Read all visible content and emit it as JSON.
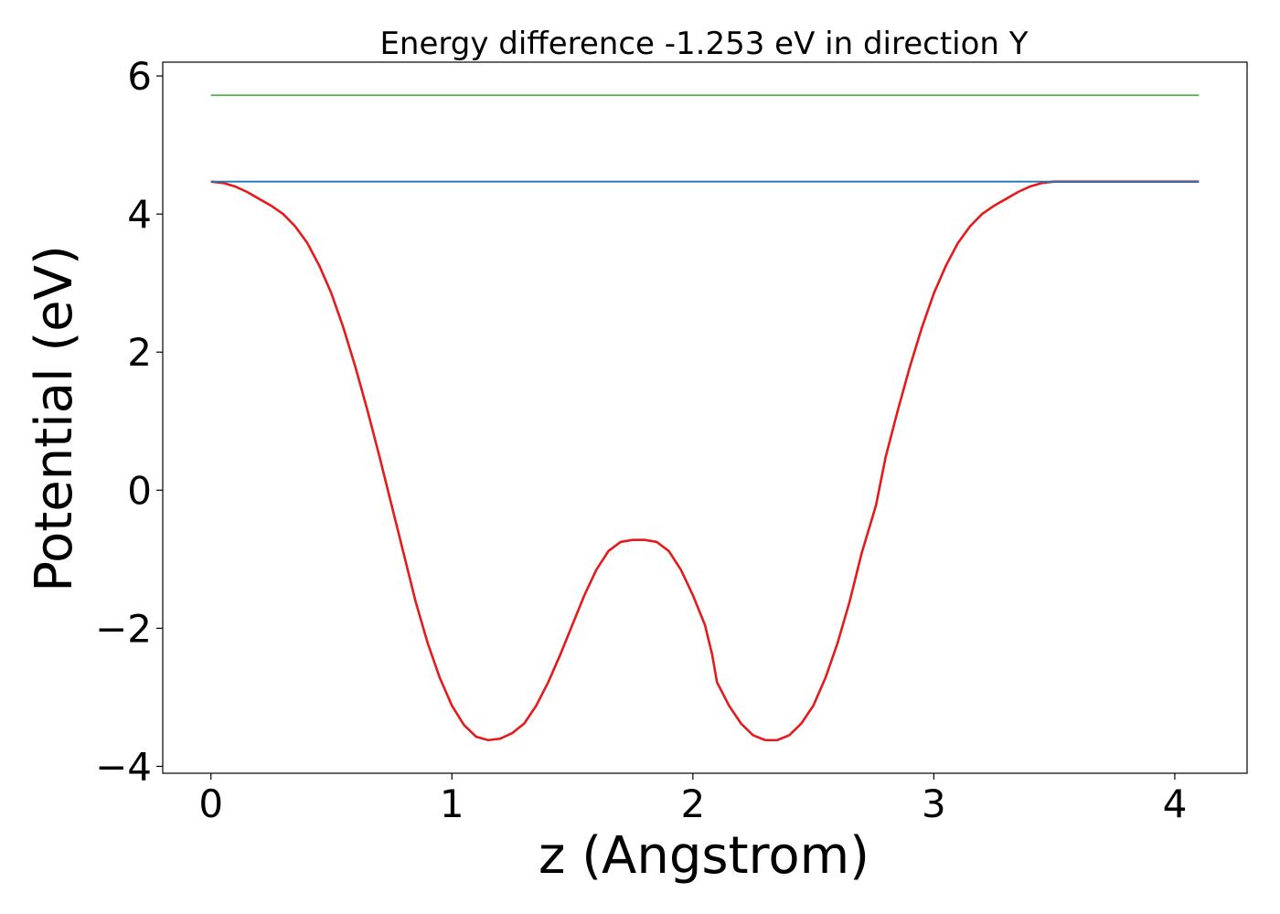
{
  "chart_data": {
    "type": "line",
    "title": "Energy difference -1.253 eV in direction Y",
    "xlabel": "z (Angstrom)",
    "ylabel": "Potential (eV)",
    "xlim": [
      -0.2,
      4.3
    ],
    "ylim": [
      -4.1,
      6.2
    ],
    "xticks": [
      0,
      1,
      2,
      3,
      4
    ],
    "xtick_labels": [
      "0",
      "1",
      "2",
      "3",
      "4"
    ],
    "yticks": [
      -4,
      -2,
      0,
      2,
      4,
      6
    ],
    "ytick_labels": [
      "−4",
      "−2",
      "0",
      "2",
      "4",
      "6"
    ],
    "grid": false,
    "series": [
      {
        "color": "#e41a1c",
        "kind": "curve",
        "x": [
          0.0,
          0.05,
          0.1,
          0.15,
          0.2,
          0.25,
          0.3,
          0.35,
          0.4,
          0.45,
          0.5,
          0.55,
          0.6,
          0.65,
          0.7,
          0.75,
          0.8,
          0.85,
          0.9,
          0.95,
          1.0,
          1.05,
          1.1,
          1.15,
          1.2,
          1.25,
          1.3,
          1.35,
          1.4,
          1.45,
          1.5,
          1.55,
          1.6,
          1.65,
          1.7,
          1.75,
          1.8,
          1.85,
          1.9,
          1.95,
          2.0,
          2.05,
          2.08,
          2.1,
          2.15,
          2.2,
          2.25,
          2.3,
          2.35,
          2.4,
          2.45,
          2.5,
          2.55,
          2.6,
          2.65,
          2.7,
          2.76,
          2.8,
          2.85,
          2.9,
          2.95,
          3.0,
          3.05,
          3.1,
          3.15,
          3.2,
          3.25,
          3.3,
          3.35,
          3.4,
          3.45,
          3.5,
          3.55,
          3.6,
          3.65,
          3.7,
          3.75,
          3.8,
          3.85,
          3.9,
          3.95,
          4.0,
          4.05,
          4.1
        ],
        "y": [
          4.47,
          4.45,
          4.4,
          4.32,
          4.22,
          4.12,
          4.0,
          3.82,
          3.58,
          3.25,
          2.85,
          2.35,
          1.78,
          1.15,
          0.48,
          -0.22,
          -0.92,
          -1.62,
          -2.22,
          -2.72,
          -3.12,
          -3.4,
          -3.57,
          -3.62,
          -3.6,
          -3.52,
          -3.38,
          -3.12,
          -2.78,
          -2.38,
          -1.95,
          -1.52,
          -1.15,
          -0.88,
          -0.75,
          -0.72,
          -0.72,
          -0.75,
          -0.88,
          -1.15,
          -1.52,
          -1.95,
          -2.38,
          -2.78,
          -3.12,
          -3.38,
          -3.55,
          -3.62,
          -3.62,
          -3.55,
          -3.38,
          -3.12,
          -2.72,
          -2.22,
          -1.62,
          -0.92,
          -0.22,
          0.48,
          1.15,
          1.78,
          2.35,
          2.85,
          3.25,
          3.58,
          3.82,
          4.0,
          4.12,
          4.22,
          4.32,
          4.4,
          4.45,
          4.47,
          4.47,
          4.47,
          4.47,
          4.47,
          4.47,
          4.47,
          4.47,
          4.47,
          4.47,
          4.47,
          4.47,
          4.47
        ]
      },
      {
        "color": "#1f77b4",
        "kind": "hline",
        "x": [
          0.0,
          4.1
        ],
        "y": [
          4.47,
          4.47
        ]
      },
      {
        "color": "#4daf4a",
        "kind": "hline",
        "x": [
          0.0,
          4.1
        ],
        "y": [
          5.72,
          5.72
        ]
      }
    ]
  }
}
